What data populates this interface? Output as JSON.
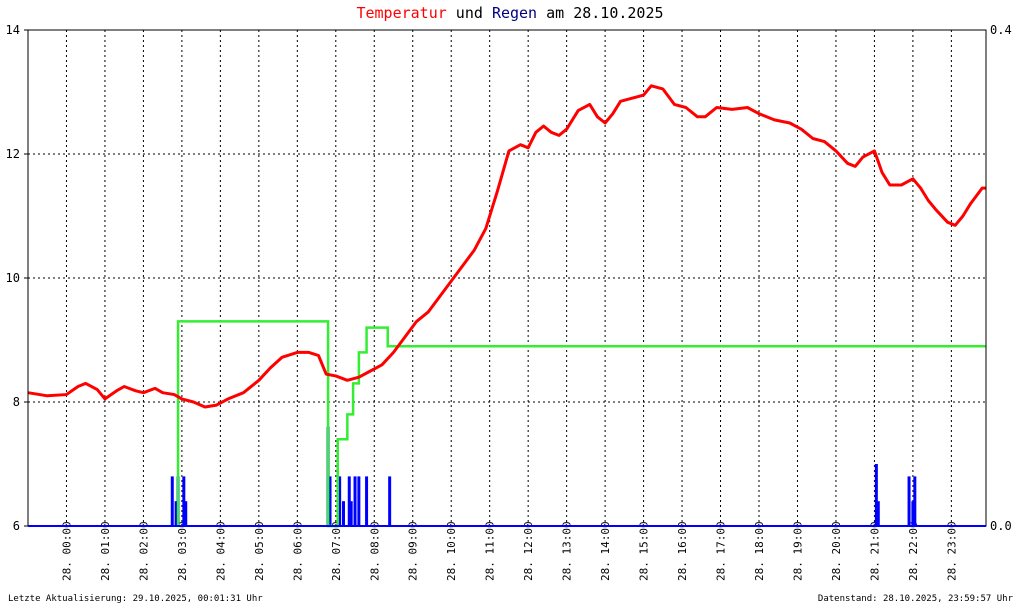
{
  "title": {
    "part1": "Temperatur",
    "part2": " und ",
    "part3": "Regen",
    "part4": " am 28.10.2025"
  },
  "colors": {
    "temperature": "#ff0000",
    "rain_bar": "#0000ff",
    "rain_cumulative": "#33ee33",
    "title_word1": "#ff0000",
    "title_word2": "#000080",
    "grid": "#000000",
    "frame": "#000000"
  },
  "footer": {
    "left": "Letzte Aktualisierung: 29.10.2025, 00:01:31 Uhr",
    "right": "Datenstand: 28.10.2025, 23:59:57 Uhr"
  },
  "chart_data": {
    "type": "line",
    "title": "Temperatur und Regen am 28.10.2025",
    "x_ticks": [
      "28. 00:00",
      "28. 01:00",
      "28. 02:00",
      "28. 03:00",
      "28. 04:00",
      "28. 05:00",
      "28. 06:00",
      "28. 07:00",
      "28. 08:00",
      "28. 09:00",
      "28. 10:00",
      "28. 11:00",
      "28. 12:00",
      "28. 13:00",
      "28. 14:00",
      "28. 15:00",
      "28. 16:00",
      "28. 17:00",
      "28. 18:00",
      "28. 19:00",
      "28. 20:00",
      "28. 21:00",
      "28. 22:00",
      "28. 23:00"
    ],
    "xlim_hours": [
      -1,
      23.9
    ],
    "y_left": {
      "ticks": [
        "6",
        "8",
        "10",
        "12",
        "14"
      ],
      "lim": [
        6,
        14
      ]
    },
    "y_right": {
      "ticks": [
        "0.0",
        "0.4"
      ],
      "lim": [
        0.0,
        0.4
      ]
    },
    "grid": true,
    "series": [
      {
        "kind": "temperature",
        "axis": "left",
        "points": [
          [
            -1.0,
            8.15
          ],
          [
            -0.5,
            8.1
          ],
          [
            0.0,
            8.12
          ],
          [
            0.3,
            8.25
          ],
          [
            0.5,
            8.3
          ],
          [
            0.8,
            8.2
          ],
          [
            1.0,
            8.05
          ],
          [
            1.3,
            8.18
          ],
          [
            1.5,
            8.25
          ],
          [
            1.8,
            8.18
          ],
          [
            2.0,
            8.15
          ],
          [
            2.3,
            8.22
          ],
          [
            2.5,
            8.15
          ],
          [
            2.8,
            8.12
          ],
          [
            3.0,
            8.05
          ],
          [
            3.3,
            8.0
          ],
          [
            3.6,
            7.92
          ],
          [
            3.9,
            7.95
          ],
          [
            4.2,
            8.05
          ],
          [
            4.6,
            8.15
          ],
          [
            5.0,
            8.35
          ],
          [
            5.3,
            8.55
          ],
          [
            5.6,
            8.72
          ],
          [
            6.0,
            8.8
          ],
          [
            6.3,
            8.8
          ],
          [
            6.55,
            8.75
          ],
          [
            6.75,
            8.45
          ],
          [
            7.0,
            8.42
          ],
          [
            7.3,
            8.35
          ],
          [
            7.6,
            8.4
          ],
          [
            7.9,
            8.5
          ],
          [
            8.2,
            8.6
          ],
          [
            8.5,
            8.8
          ],
          [
            8.8,
            9.05
          ],
          [
            9.1,
            9.3
          ],
          [
            9.4,
            9.45
          ],
          [
            9.7,
            9.7
          ],
          [
            10.0,
            9.95
          ],
          [
            10.3,
            10.2
          ],
          [
            10.6,
            10.45
          ],
          [
            10.9,
            10.8
          ],
          [
            11.2,
            11.4
          ],
          [
            11.5,
            12.05
          ],
          [
            11.8,
            12.15
          ],
          [
            12.0,
            12.1
          ],
          [
            12.2,
            12.35
          ],
          [
            12.4,
            12.45
          ],
          [
            12.6,
            12.35
          ],
          [
            12.8,
            12.3
          ],
          [
            13.0,
            12.4
          ],
          [
            13.3,
            12.7
          ],
          [
            13.6,
            12.8
          ],
          [
            13.8,
            12.6
          ],
          [
            14.0,
            12.5
          ],
          [
            14.2,
            12.65
          ],
          [
            14.4,
            12.85
          ],
          [
            14.7,
            12.9
          ],
          [
            15.0,
            12.95
          ],
          [
            15.2,
            13.1
          ],
          [
            15.5,
            13.05
          ],
          [
            15.8,
            12.8
          ],
          [
            16.1,
            12.75
          ],
          [
            16.4,
            12.6
          ],
          [
            16.6,
            12.6
          ],
          [
            16.9,
            12.75
          ],
          [
            17.3,
            12.72
          ],
          [
            17.7,
            12.75
          ],
          [
            18.0,
            12.65
          ],
          [
            18.4,
            12.55
          ],
          [
            18.8,
            12.5
          ],
          [
            19.1,
            12.4
          ],
          [
            19.4,
            12.25
          ],
          [
            19.7,
            12.2
          ],
          [
            20.0,
            12.05
          ],
          [
            20.3,
            11.85
          ],
          [
            20.5,
            11.8
          ],
          [
            20.7,
            11.95
          ],
          [
            21.0,
            12.05
          ],
          [
            21.2,
            11.7
          ],
          [
            21.4,
            11.5
          ],
          [
            21.7,
            11.5
          ],
          [
            22.0,
            11.6
          ],
          [
            22.2,
            11.45
          ],
          [
            22.4,
            11.25
          ],
          [
            22.6,
            11.1
          ],
          [
            22.9,
            10.9
          ],
          [
            23.1,
            10.85
          ],
          [
            23.3,
            11.0
          ],
          [
            23.5,
            11.2
          ],
          [
            23.8,
            11.45
          ],
          [
            23.9,
            11.45
          ]
        ]
      },
      {
        "kind": "rain_cumulative",
        "axis": "right",
        "points": [
          [
            2.9,
            0.0
          ],
          [
            2.9,
            0.165
          ],
          [
            3.2,
            0.165
          ],
          [
            3.2,
            0.165
          ],
          [
            6.8,
            0.165
          ],
          [
            6.8,
            0.0
          ],
          [
            7.05,
            0.0
          ],
          [
            7.05,
            0.07
          ],
          [
            7.3,
            0.07
          ],
          [
            7.3,
            0.09
          ],
          [
            7.45,
            0.09
          ],
          [
            7.45,
            0.115
          ],
          [
            7.6,
            0.115
          ],
          [
            7.6,
            0.14
          ],
          [
            7.8,
            0.14
          ],
          [
            7.8,
            0.16
          ],
          [
            8.35,
            0.16
          ],
          [
            8.35,
            0.145
          ],
          [
            23.9,
            0.145
          ]
        ]
      },
      {
        "kind": "rain_bar",
        "axis": "right",
        "points": [
          [
            2.75,
            0.04
          ],
          [
            2.85,
            0.02
          ],
          [
            2.9,
            0.04
          ],
          [
            3.05,
            0.04
          ],
          [
            3.1,
            0.02
          ],
          [
            6.8,
            0.08
          ],
          [
            6.85,
            0.04
          ],
          [
            7.1,
            0.04
          ],
          [
            7.2,
            0.02
          ],
          [
            7.35,
            0.04
          ],
          [
            7.4,
            0.02
          ],
          [
            7.5,
            0.04
          ],
          [
            7.6,
            0.04
          ],
          [
            7.8,
            0.04
          ],
          [
            8.4,
            0.04
          ],
          [
            21.05,
            0.05
          ],
          [
            21.1,
            0.02
          ],
          [
            21.9,
            0.04
          ],
          [
            22.0,
            0.02
          ],
          [
            22.05,
            0.04
          ]
        ]
      }
    ]
  }
}
